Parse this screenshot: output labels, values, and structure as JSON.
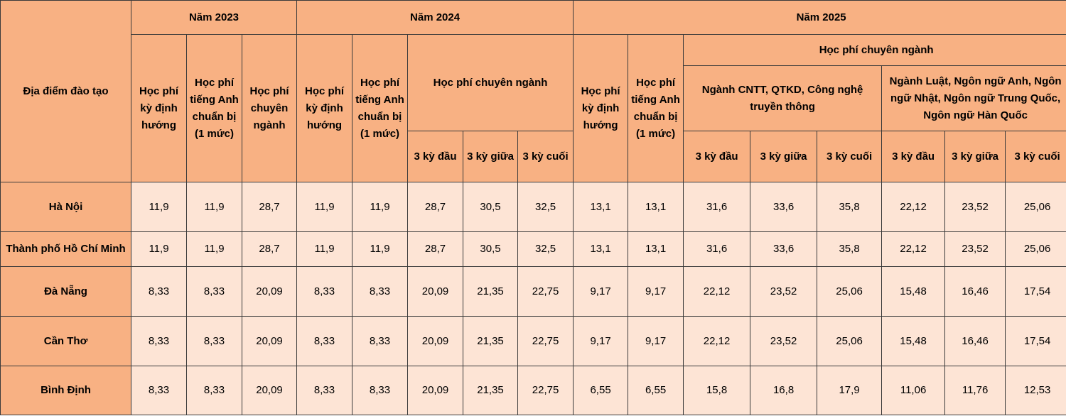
{
  "header": {
    "location": "Địa điểm đào tạo",
    "year_2023": "Năm 2023",
    "year_2024": "Năm 2024",
    "year_2025": "Năm 2025",
    "orientation_fee": "Học phí kỳ định hướng",
    "english_prep_fee": "Học phí tiếng Anh chuẩn bị (1 mức)",
    "major_fee": "Học phí chuyên ngành",
    "major_fee_2025_group1": "Ngành CNTT, QTKD, Công nghệ truyền thông",
    "major_fee_2025_group2": "Ngành Luật, Ngôn ngữ Anh, Ngôn ngữ Nhật, Ngôn ngữ Trung Quốc, Ngôn ngữ Hàn Quốc",
    "first_3_terms": "3 kỳ đầu",
    "middle_3_terms": "3 kỳ giữa",
    "last_3_terms": "3 kỳ cuối"
  },
  "rows": [
    {
      "location": "Hà Nội",
      "values": [
        "11,9",
        "11,9",
        "28,7",
        "11,9",
        "11,9",
        "28,7",
        "30,5",
        "32,5",
        "13,1",
        "13,1",
        "31,6",
        "33,6",
        "35,8",
        "22,12",
        "23,52",
        "25,06"
      ]
    },
    {
      "location": "Thành phố Hồ Chí Minh",
      "values": [
        "11,9",
        "11,9",
        "28,7",
        "11,9",
        "11,9",
        "28,7",
        "30,5",
        "32,5",
        "13,1",
        "13,1",
        "31,6",
        "33,6",
        "35,8",
        "22,12",
        "23,52",
        "25,06"
      ]
    },
    {
      "location": "Đà Nẵng",
      "values": [
        "8,33",
        "8,33",
        "20,09",
        "8,33",
        "8,33",
        "20,09",
        "21,35",
        "22,75",
        "9,17",
        "9,17",
        "22,12",
        "23,52",
        "25,06",
        "15,48",
        "16,46",
        "17,54"
      ]
    },
    {
      "location": "Cần Thơ",
      "values": [
        "8,33",
        "8,33",
        "20,09",
        "8,33",
        "8,33",
        "20,09",
        "21,35",
        "22,75",
        "9,17",
        "9,17",
        "22,12",
        "23,52",
        "25,06",
        "15,48",
        "16,46",
        "17,54"
      ]
    },
    {
      "location": "Bình Định",
      "values": [
        "8,33",
        "8,33",
        "20,09",
        "8,33",
        "8,33",
        "20,09",
        "21,35",
        "22,75",
        "6,55",
        "6,55",
        "15,8",
        "16,8",
        "17,9",
        "11,06",
        "11,76",
        "12,53"
      ]
    }
  ],
  "colors": {
    "header_bg": "#f8b183",
    "cell_bg": "#fde4d5",
    "border": "#3a3a3a"
  }
}
